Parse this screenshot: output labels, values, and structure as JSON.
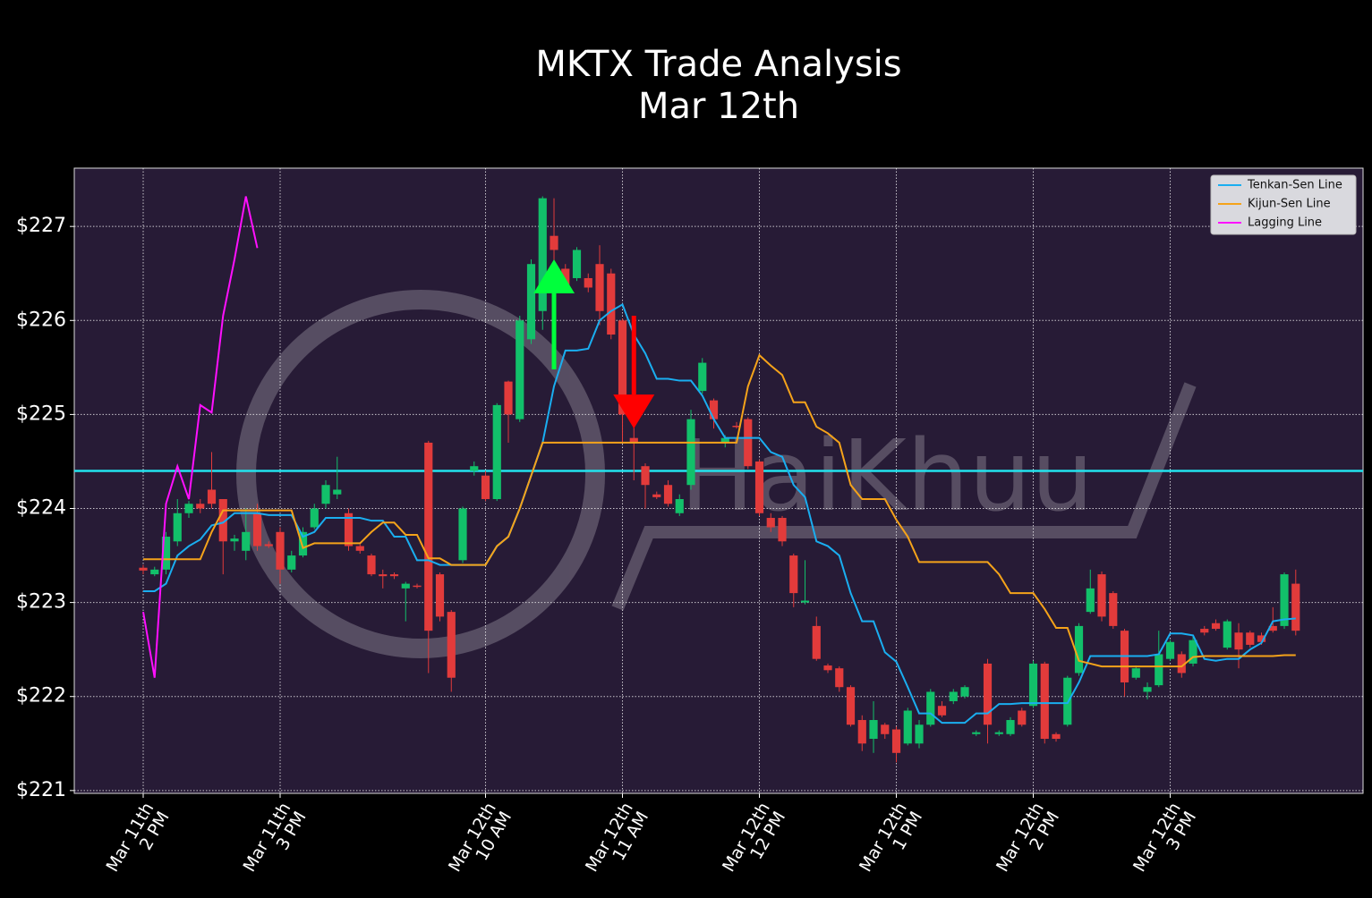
{
  "chart_data": {
    "type": "candlestick",
    "title": "MKTX Trade Analysis",
    "subtitle": "Mar 12th",
    "watermark": "HaiKhuu",
    "xlim": [
      -6.04,
      106.9
    ],
    "ylim": [
      220.97,
      227.62
    ],
    "yticks": [
      {
        "value": 221,
        "label": "$221"
      },
      {
        "value": 222,
        "label": "$222"
      },
      {
        "value": 223,
        "label": "$223"
      },
      {
        "value": 224,
        "label": "$224"
      },
      {
        "value": 225,
        "label": "$225"
      },
      {
        "value": 226,
        "label": "$226"
      },
      {
        "value": 227,
        "label": "$227"
      }
    ],
    "xticks": [
      {
        "value": 0,
        "label": [
          "Mar 11th",
          "2 PM"
        ]
      },
      {
        "value": 12,
        "label": [
          "Mar 11th",
          "3 PM"
        ]
      },
      {
        "value": 30,
        "label": [
          "Mar 12th",
          "10 AM"
        ]
      },
      {
        "value": 42,
        "label": [
          "Mar 12th",
          "11 AM"
        ]
      },
      {
        "value": 54,
        "label": [
          "Mar 12th",
          "12 PM"
        ]
      },
      {
        "value": 66,
        "label": [
          "Mar 12th",
          "1 PM"
        ]
      },
      {
        "value": 78,
        "label": [
          "Mar 12th",
          "2 PM"
        ]
      },
      {
        "value": 90,
        "label": [
          "Mar 12th",
          "3 PM"
        ]
      }
    ],
    "grid": true,
    "up_color": "#12c06a",
    "down_color": "#e23b3b",
    "open": [
      223.37,
      223.3,
      223.35,
      223.65,
      223.95,
      224.05,
      224.2,
      224.1,
      223.65,
      223.55,
      223.95,
      223.62,
      223.75,
      223.35,
      223.5,
      223.8,
      224.05,
      224.15,
      223.95,
      223.6,
      223.5,
      223.3,
      223.3,
      223.15,
      223.18,
      224.7,
      223.3,
      222.9,
      223.45,
      224.4,
      224.35,
      224.1,
      225.35,
      224.95,
      225.8,
      226.1,
      226.9,
      226.55,
      226.45,
      226.45,
      226.6,
      226.5,
      226.0,
      224.75,
      224.45,
      224.15,
      224.25,
      223.95,
      224.25,
      225.25,
      225.15,
      224.7,
      224.88,
      224.95,
      224.5,
      223.9,
      223.9,
      223.5,
      223.0,
      222.75,
      222.33,
      222.3,
      222.1,
      221.75,
      221.55,
      221.7,
      221.65,
      221.5,
      221.5,
      221.7,
      221.9,
      221.95,
      222.0,
      221.6,
      222.35,
      221.6,
      221.6,
      221.85,
      221.9,
      222.35,
      221.6,
      221.7,
      222.25,
      222.9,
      223.3,
      223.1,
      222.7,
      222.2,
      222.05,
      222.12,
      222.4,
      222.45,
      222.35,
      222.72,
      222.78,
      222.52,
      222.68,
      222.68,
      222.65,
      222.75,
      222.75,
      223.2
    ],
    "high": [
      223.4,
      223.38,
      223.75,
      224.1,
      224.08,
      224.1,
      224.6,
      224.1,
      223.72,
      224.0,
      224.05,
      223.65,
      223.8,
      223.55,
      223.8,
      224.05,
      224.3,
      224.55,
      224.0,
      223.62,
      223.52,
      223.35,
      223.32,
      223.22,
      223.2,
      224.72,
      223.32,
      222.92,
      224.02,
      224.5,
      224.4,
      225.12,
      225.36,
      226.05,
      226.65,
      227.32,
      227.3,
      226.6,
      226.78,
      226.5,
      226.8,
      226.55,
      226.02,
      226.05,
      224.48,
      224.18,
      224.3,
      224.15,
      225.05,
      225.6,
      225.17,
      224.78,
      224.92,
      224.97,
      224.52,
      223.95,
      223.92,
      223.52,
      223.45,
      222.85,
      222.35,
      222.32,
      222.12,
      221.8,
      221.95,
      221.72,
      221.68,
      221.88,
      221.75,
      222.08,
      221.95,
      222.08,
      222.12,
      221.64,
      222.4,
      221.64,
      221.78,
      221.88,
      222.38,
      222.37,
      221.62,
      222.22,
      222.78,
      223.35,
      223.33,
      223.12,
      222.72,
      222.33,
      222.15,
      222.7,
      222.6,
      222.48,
      222.65,
      222.75,
      222.82,
      222.82,
      222.78,
      222.7,
      222.68,
      222.95,
      223.32,
      223.35
    ],
    "low": [
      223.3,
      223.28,
      223.3,
      223.6,
      223.9,
      223.95,
      224.0,
      223.3,
      223.55,
      223.45,
      223.55,
      223.58,
      223.2,
      223.32,
      223.48,
      223.78,
      224.0,
      224.1,
      223.55,
      223.52,
      223.28,
      223.15,
      223.25,
      222.8,
      223.15,
      222.25,
      222.8,
      222.05,
      223.42,
      224.35,
      224.08,
      224.08,
      224.7,
      224.92,
      225.75,
      225.9,
      226.3,
      226.3,
      226.42,
      226.3,
      225.95,
      225.8,
      224.7,
      224.3,
      224.0,
      224.1,
      224.02,
      223.92,
      224.2,
      225.22,
      224.85,
      224.65,
      224.85,
      224.42,
      223.92,
      223.75,
      223.6,
      222.95,
      222.98,
      222.38,
      222.25,
      222.05,
      221.68,
      221.42,
      221.4,
      221.55,
      221.3,
      221.48,
      221.45,
      221.68,
      221.78,
      221.92,
      221.98,
      221.58,
      221.5,
      221.58,
      221.58,
      221.68,
      221.88,
      221.5,
      221.52,
      221.68,
      222.22,
      222.88,
      222.8,
      222.72,
      222.0,
      222.18,
      221.97,
      222.1,
      222.38,
      222.2,
      222.32,
      222.65,
      222.7,
      222.5,
      222.3,
      222.52,
      222.55,
      222.68,
      222.72,
      222.65
    ],
    "close": [
      223.34,
      223.35,
      223.7,
      223.95,
      224.05,
      224.0,
      224.05,
      223.65,
      223.68,
      223.75,
      223.6,
      223.6,
      223.35,
      223.5,
      223.75,
      224.0,
      224.25,
      224.2,
      223.6,
      223.55,
      223.3,
      223.28,
      223.28,
      223.2,
      223.17,
      222.7,
      222.85,
      222.2,
      224.0,
      224.45,
      224.1,
      225.1,
      225.0,
      226.0,
      226.6,
      227.3,
      226.75,
      226.35,
      226.75,
      226.35,
      226.1,
      225.85,
      225.0,
      224.7,
      224.25,
      224.12,
      224.05,
      224.1,
      224.95,
      225.55,
      224.95,
      224.75,
      224.87,
      224.45,
      223.95,
      223.8,
      223.65,
      223.1,
      223.02,
      222.4,
      222.28,
      222.1,
      221.7,
      221.5,
      221.75,
      221.6,
      221.4,
      221.85,
      221.7,
      222.05,
      221.8,
      222.05,
      222.1,
      221.62,
      221.7,
      221.62,
      221.75,
      221.7,
      222.35,
      221.55,
      221.55,
      222.2,
      222.75,
      223.15,
      222.85,
      222.75,
      222.15,
      222.3,
      222.1,
      222.45,
      222.58,
      222.25,
      222.6,
      222.68,
      222.72,
      222.8,
      222.5,
      222.55,
      222.58,
      222.7,
      223.3,
      222.7
    ],
    "series": [
      {
        "name": "Tenkan-Sen Line",
        "color": "#1aaef0",
        "values": [
          223.12,
          223.12,
          223.2,
          223.5,
          223.6,
          223.67,
          223.82,
          223.85,
          223.95,
          223.95,
          223.95,
          223.93,
          223.93,
          223.93,
          223.7,
          223.75,
          223.9,
          223.9,
          223.9,
          223.9,
          223.87,
          223.87,
          223.7,
          223.7,
          223.45,
          223.45,
          223.4,
          223.4,
          223.4,
          223.4,
          223.4,
          223.6,
          223.7,
          224.0,
          224.35,
          224.7,
          225.3,
          225.68,
          225.68,
          225.7,
          226.0,
          226.1,
          226.17,
          225.85,
          225.65,
          225.38,
          225.38,
          225.36,
          225.36,
          225.2,
          224.95,
          224.75,
          224.75,
          224.75,
          224.75,
          224.6,
          224.55,
          224.25,
          224.12,
          223.65,
          223.6,
          223.5,
          223.1,
          222.8,
          222.8,
          222.47,
          222.37,
          222.1,
          221.82,
          221.82,
          221.72,
          221.72,
          221.72,
          221.82,
          221.82,
          221.92,
          221.92,
          221.93,
          221.93,
          221.93,
          221.93,
          221.93,
          222.15,
          222.43,
          222.43,
          222.43,
          222.43,
          222.43,
          222.43,
          222.45,
          222.67,
          222.67,
          222.65,
          222.4,
          222.38,
          222.4,
          222.4,
          222.5,
          222.57,
          222.8,
          222.82,
          222.83
        ]
      },
      {
        "name": "Kijun-Sen Line",
        "color": "#f5a31a",
        "values": [
          223.46,
          223.46,
          223.46,
          223.46,
          223.46,
          223.46,
          223.75,
          223.98,
          223.98,
          223.98,
          223.98,
          223.98,
          223.98,
          223.98,
          223.58,
          223.63,
          223.63,
          223.63,
          223.63,
          223.63,
          223.75,
          223.85,
          223.85,
          223.72,
          223.72,
          223.47,
          223.47,
          223.4,
          223.4,
          223.4,
          223.4,
          223.6,
          223.7,
          224.0,
          224.35,
          224.7,
          224.7,
          224.7,
          224.7,
          224.7,
          224.7,
          224.7,
          224.7,
          224.7,
          224.7,
          224.7,
          224.7,
          224.7,
          224.7,
          224.7,
          224.7,
          224.7,
          224.7,
          225.3,
          225.63,
          225.52,
          225.42,
          225.13,
          225.13,
          224.87,
          224.8,
          224.7,
          224.25,
          224.1,
          224.1,
          224.1,
          223.88,
          223.7,
          223.43,
          223.43,
          223.43,
          223.43,
          223.43,
          223.43,
          223.43,
          223.3,
          223.1,
          223.1,
          223.1,
          222.93,
          222.73,
          222.73,
          222.38,
          222.35,
          222.32,
          222.32,
          222.32,
          222.32,
          222.32,
          222.32,
          222.32,
          222.32,
          222.42,
          222.43,
          222.43,
          222.43,
          222.43,
          222.43,
          222.43,
          222.43,
          222.44,
          222.44
        ]
      },
      {
        "name": "Lagging Line",
        "color": "#ff10ff",
        "values": [
          222.9,
          222.2,
          224.05,
          224.45,
          224.1,
          225.1,
          225.02,
          226.05,
          226.65,
          227.32,
          226.77
        ]
      }
    ],
    "hline": {
      "value": 224.4,
      "color": "#22e3ee"
    },
    "buy_signal": {
      "x": 36,
      "from": 225.48,
      "to": 226.65,
      "color": "#00ff3c"
    },
    "sell_signal": {
      "x": 43,
      "from": 226.05,
      "to": 224.85,
      "color": "#ff0000"
    },
    "legend": "upper right"
  }
}
